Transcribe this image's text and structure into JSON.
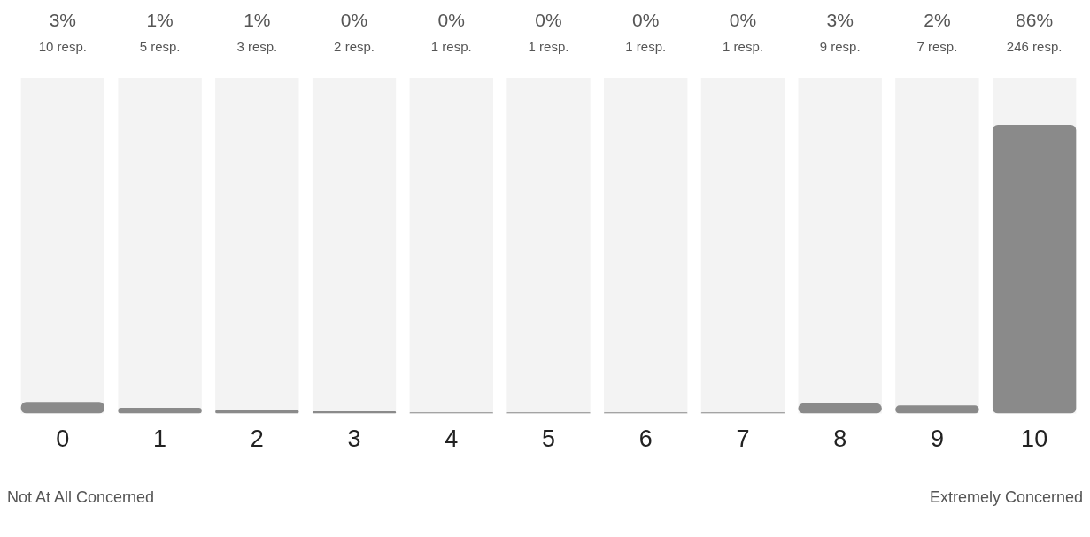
{
  "chart_data": {
    "type": "bar",
    "categories": [
      "0",
      "1",
      "2",
      "3",
      "4",
      "5",
      "6",
      "7",
      "8",
      "9",
      "10"
    ],
    "values": [
      10,
      5,
      3,
      2,
      1,
      1,
      1,
      1,
      9,
      7,
      246
    ],
    "value_labels": [
      "10 resp.",
      "5 resp.",
      "3 resp.",
      "2 resp.",
      "1 resp.",
      "1 resp.",
      "1 resp.",
      "1 resp.",
      "9 resp.",
      "7 resp.",
      "246 resp."
    ],
    "color": "#8a8a8a",
    "ylim": [
      0,
      286
    ],
    "grid": false,
    "legend": false,
    "annotations": [
      "3%",
      "1%",
      "1%",
      "0%",
      "0%",
      "0%",
      "0%",
      "0%",
      "3%",
      "2%",
      "86%",
      "Not At All Concerned",
      "Extremely Concerned"
    ]
  }
}
